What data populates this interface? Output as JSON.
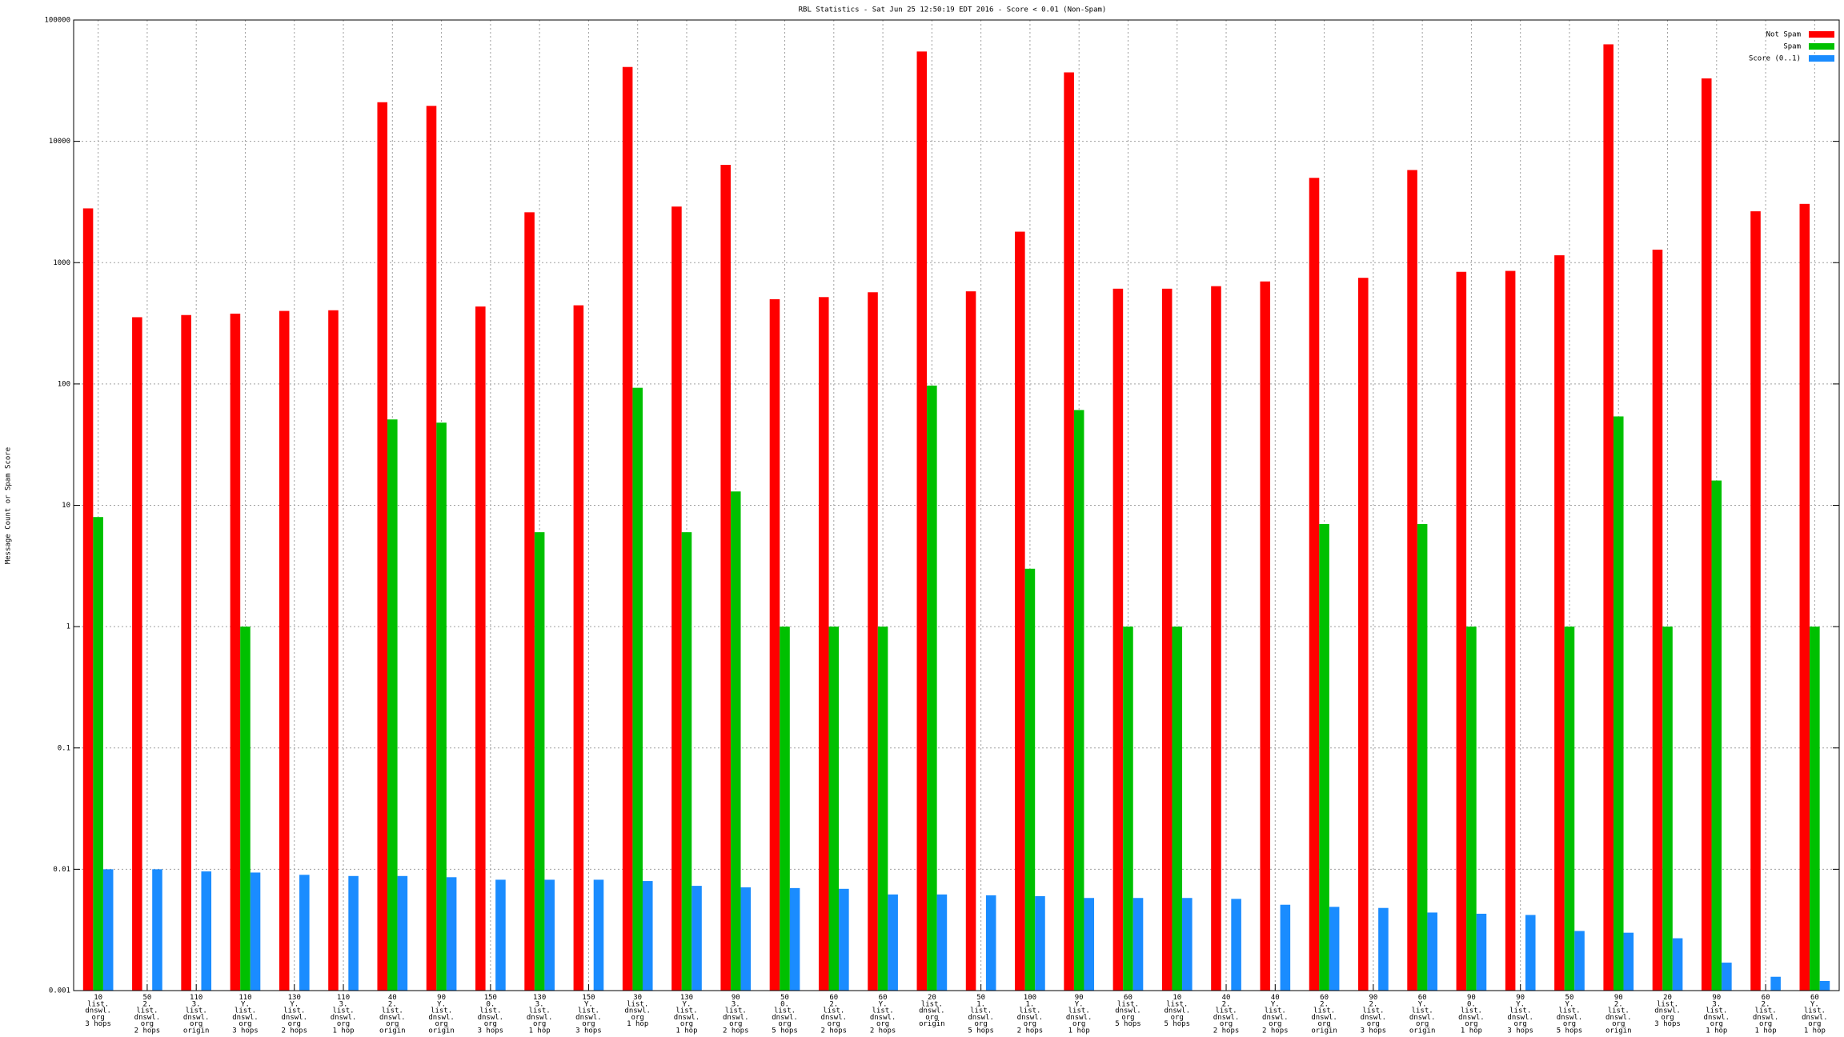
{
  "chart_data": {
    "type": "bar",
    "title": "RBL Statistics - Sat Jun 25 12:50:19 EDT 2016 - Score < 0.01 (Non-Spam)",
    "y_label": "Message Count or Spam Score",
    "log_scale": true,
    "grid": true,
    "legend": "top-right",
    "ylim": [
      0.001,
      100000
    ],
    "yticks": [
      0.001,
      0.01,
      0.1,
      1,
      10,
      100,
      1000,
      10000,
      100000
    ],
    "categories": [
      "10\nlist.\ndnswl.\norg\n3 hops",
      "50\n2.\nlist.\ndnswl.\norg\n2 hops",
      "110\n3.\nlist.\ndnswl.\norg\norigin",
      "110\nY.\nlist.\ndnswl.\norg\n3 hops",
      "130\nY.\nlist.\ndnswl.\norg\n2 hops",
      "110\n3.\nlist.\ndnswl.\norg\n1 hop",
      "40\n2.\nlist.\ndnswl.\norg\norigin",
      "90\nY.\nlist.\ndnswl.\norg\norigin",
      "150\n0.\nlist.\ndnswl.\norg\n3 hops",
      "130\n3.\nlist.\ndnswl.\norg\n1 hop",
      "150\nY.\nlist.\ndnswl.\norg\n3 hops",
      "30\nlist.\ndnswl.\norg\n1 hop",
      "130\nY.\nlist.\ndnswl.\norg\n1 hop",
      "90\n3.\nlist.\ndnswl.\norg\n2 hops",
      "50\n0.\nlist.\ndnswl.\norg\n5 hops",
      "60\n2.\nlist.\ndnswl.\norg\n2 hops",
      "60\nY.\nlist.\ndnswl.\norg\n2 hops",
      "20\nlist.\ndnswl.\norg\norigin",
      "50\n1.\nlist.\ndnswl.\norg\n5 hops",
      "100\n1.\nlist.\ndnswl.\norg\n2 hops",
      "90\nY.\nlist.\ndnswl.\norg\n1 hop",
      "60\nlist.\ndnswl.\norg\n5 hops",
      "10\nlist.\ndnswl.\norg\n5 hops",
      "40\n2.\nlist.\ndnswl.\norg\n2 hops",
      "40\nY.\nlist.\ndnswl.\norg\n2 hops",
      "60\n2.\nlist.\ndnswl.\norg\norigin",
      "90\n2.\nlist.\ndnswl.\norg\n3 hops",
      "60\nY.\nlist.\ndnswl.\norg\norigin",
      "90\n0.\nlist.\ndnswl.\norg\n1 hop",
      "90\nY.\nlist.\ndnswl.\norg\n3 hops",
      "50\nY.\nlist.\ndnswl.\norg\n5 hops",
      "90\n2.\nlist.\ndnswl.\norg\norigin",
      "20\nlist.\ndnswl.\norg\n3 hops",
      "90\n3.\nlist.\ndnswl.\norg\n1 hop",
      "60\n2.\nlist.\ndnswl.\norg\n1 hop",
      "60\nY.\nlist.\ndnswl.\norg\n1 hop"
    ],
    "series": [
      {
        "name": "Not Spam",
        "color": "#ff0000",
        "values": [
          2800,
          355,
          370,
          380,
          400,
          405,
          21000,
          19600,
          435,
          2600,
          445,
          41000,
          2900,
          6400,
          500,
          520,
          570,
          55000,
          580,
          1800,
          37000,
          610,
          610,
          640,
          700,
          5000,
          750,
          5800,
          840,
          855,
          1150,
          63000,
          1280,
          33000,
          2650,
          3050
        ]
      },
      {
        "name": "Spam",
        "color": "#00c000",
        "values": [
          8,
          null,
          null,
          1,
          null,
          null,
          51,
          48,
          null,
          6,
          null,
          93,
          6,
          13,
          1,
          1,
          1,
          97,
          null,
          3,
          61,
          1,
          1,
          null,
          null,
          7,
          null,
          7,
          1,
          null,
          1,
          54,
          1,
          16,
          null,
          1
        ]
      },
      {
        "name": "Score (0..1)",
        "color": "#1a8cff",
        "values": [
          0.01,
          0.01,
          0.0096,
          0.0094,
          0.009,
          0.0088,
          0.0088,
          0.0086,
          0.0082,
          0.0082,
          0.0082,
          0.008,
          0.0073,
          0.0071,
          0.007,
          0.0069,
          0.0062,
          0.0062,
          0.0061,
          0.006,
          0.0058,
          0.0058,
          0.0058,
          0.0057,
          0.0051,
          0.0049,
          0.0048,
          0.0044,
          0.0043,
          0.0042,
          0.0031,
          0.003,
          0.0027,
          0.0017,
          0.0013,
          0.0012
        ]
      }
    ]
  }
}
